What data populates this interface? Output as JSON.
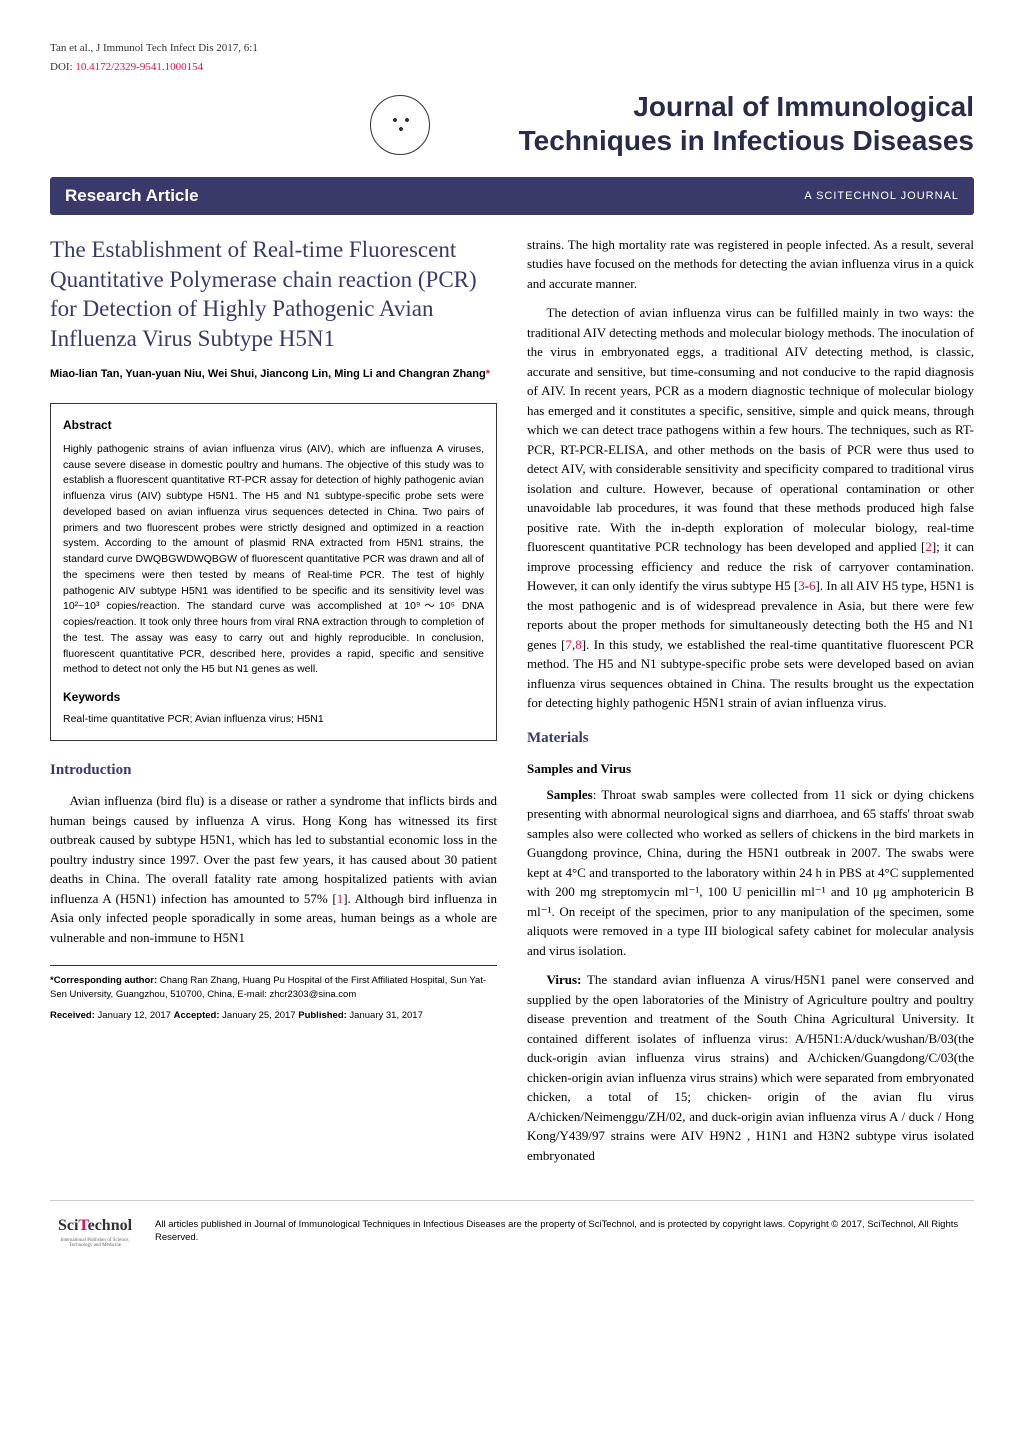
{
  "header": {
    "reference": "Tan et al., J Immunol Tech Infect Dis 2017, 6:1",
    "doi_label": "DOI: ",
    "doi": "10.4172/2329-9541.1000154",
    "journal_title_line1": "Journal of Immunological",
    "journal_title_line2": "Techniques in Infectious Diseases"
  },
  "bar": {
    "article_type": "Research Article",
    "tag": "A SCITECHNOL JOURNAL"
  },
  "article": {
    "title": "The Establishment of Real-time Fluorescent Quantitative Polymerase chain reaction (PCR) for Detection of Highly Pathogenic Avian Influenza Virus Subtype H5N1",
    "authors": "Miao-lian Tan, Yuan-yuan Niu, Wei Shui, Jiancong Lin, Ming Li and Changran Zhang",
    "asterisk": "*"
  },
  "abstract": {
    "heading": "Abstract",
    "text": "Highly pathogenic strains of avian influenza virus (AIV), which are influenza A viruses, cause severe disease in domestic poultry and humans. The objective of this study was to establish a fluorescent quantitative RT-PCR assay for detection of highly pathogenic avian influenza virus (AIV) subtype H5N1. The H5 and N1 subtype-specific probe sets were developed based on avian influenza virus sequences detected in China. Two pairs of primers and two fluorescent probes were strictly designed and optimized in a reaction system. According to the amount of plasmid RNA extracted from H5N1 strains, the standard curve DWQBGWDWQBGW of fluorescent quantitative PCR was drawn and all of the specimens were then tested by means of Real-time PCR. The test of highly pathogenic AIV subtype H5N1 was identified to be specific and its sensitivity level was 10²~10³ copies/reaction. The standard curve was accomplished at 10⁹～10⁵ DNA copies/reaction. It took only three hours from viral RNA extraction through to completion of the test. The assay was easy to carry out and highly reproducible. In conclusion, fluorescent quantitative PCR, described here, provides a rapid, specific and sensitive method to detect not only the H5 but N1 genes as well.",
    "keywords_heading": "Keywords",
    "keywords": "Real-time quantitative PCR; Avian influenza virus; H5N1"
  },
  "introduction": {
    "heading": "Introduction",
    "p1": "Avian influenza (bird flu) is a disease or rather a syndrome that inflicts birds and human beings caused by influenza A virus. Hong Kong has witnessed its first outbreak caused by subtype H5N1, which has led to substantial economic loss in the poultry industry since 1997. Over the past few years, it has caused about 30 patient deaths in China. The overall fatality rate among hospitalized patients with avian influenza A (H5N1) infection has amounted to 57% [",
    "ref1": "1",
    "p1_end": "]. Although bird influenza in Asia only infected people sporadically in some areas, human beings as a whole are vulnerable and non-immune to H5N1"
  },
  "col2": {
    "p1": "strains. The high mortality rate was registered in people infected. As a result, several studies have focused on the methods for detecting the avian influenza virus in a quick and accurate manner.",
    "p2_a": "The detection of avian influenza virus can be fulfilled mainly in two ways: the traditional AIV detecting methods and molecular biology methods. The inoculation of the virus in embryonated eggs, a traditional AIV detecting method, is classic, accurate and sensitive, but time-consuming and not conducive to the rapid diagnosis of AIV. In recent years, PCR as a modern diagnostic technique of molecular biology has emerged and it constitutes a specific, sensitive, simple and quick means, through which we can detect trace pathogens within a few hours. The techniques, such as RT-PCR, RT-PCR-ELISA, and other methods on the basis of PCR were thus used to detect AIV, with considerable sensitivity and specificity compared to traditional virus isolation and culture. However, because of operational contamination or other unavoidable lab procedures, it was found that these methods produced high false positive rate. With the in-depth exploration of molecular biology, real-time fluorescent quantitative PCR technology has been developed and applied [",
    "ref2": "2",
    "p2_b": "]; it can improve processing efficiency and reduce the risk of carryover contamination. However, it can only identify the virus subtype H5 [",
    "ref3": "3",
    "ref_dash": "-",
    "ref6": "6",
    "p2_c": "]. In all AIV H5 type, H5N1 is the most pathogenic and is of widespread prevalence in Asia, but there were few reports about the proper methods for simultaneously detecting both the H5 and N1 genes [",
    "ref7": "7",
    "ref_comma": ",",
    "ref8": "8",
    "p2_d": "]. In this study, we established the real-time quantitative fluorescent PCR method. The H5 and N1 subtype-specific probe sets were developed based on avian influenza virus sequences obtained in China. The results brought us the expectation for detecting highly pathogenic H5N1 strain of avian influenza virus."
  },
  "materials": {
    "heading": "Materials",
    "sub1": "Samples and Virus",
    "samples_label": "Samples",
    "samples_text": ": Throat swab samples were collected from 11 sick or dying chickens presenting with abnormal neurological signs and diarrhoea, and 65 staffs' throat swab samples also were collected who worked as sellers of chickens in the bird markets in Guangdong province, China, during the H5N1 outbreak in 2007. The swabs were kept at 4°C and transported to the laboratory within 24 h in PBS at 4°C supplemented with 200 mg streptomycin ml⁻¹, 100 U penicillin ml⁻¹ and 10 μg amphotericin B ml⁻¹. On receipt of the specimen, prior to any manipulation of the specimen, some aliquots were removed in a type III biological safety cabinet for molecular analysis and virus isolation.",
    "virus_label": "Virus:",
    "virus_text": " The standard avian influenza A virus/H5N1 panel were conserved and supplied by the open laboratories of the Ministry of Agriculture poultry and poultry disease prevention and treatment of the South China Agricultural University. It contained different isolates of influenza virus: A/H5N1:A/duck/wushan/B/03(the duck-origin avian influenza virus strains) and A/chicken/Guangdong/C/03(the chicken-origin avian influenza virus strains) which were separated from embryonated chicken, a total of 15; chicken- origin of the avian flu virus A/chicken/Neimenggu/ZH/02, and duck-origin avian influenza virus A / duck / Hong Kong/Y439/97 strains were AIV H9N2 , H1N1 and H3N2 subtype virus isolated embryonated"
  },
  "footer_notes": {
    "corresponding": "*Corresponding author: Chang Ran Zhang, Huang Pu Hospital of the First Affiliated Hospital, Sun Yat-Sen University, Guangzhou, 510700, China, E-mail: zhcr2303@sina.com",
    "dates": "Received: January 12, 2017 Accepted: January 25, 2017 Published: January 31, 2017"
  },
  "page_footer": {
    "logo_main": "Sci",
    "logo_red": "T",
    "logo_rest": "echnol",
    "logo_sub": "International Publisher of Science, Technology and Medicine",
    "text": "All articles published in  Journal of Immunological Techniques in Infectious Diseases are the property of SciTechnol, and is protected by copyright laws. Copyright © 2017, SciTechnol, All Rights Reserved."
  },
  "colors": {
    "accent_purple": "#3a3a6a",
    "accent_pink": "#d4145a"
  }
}
